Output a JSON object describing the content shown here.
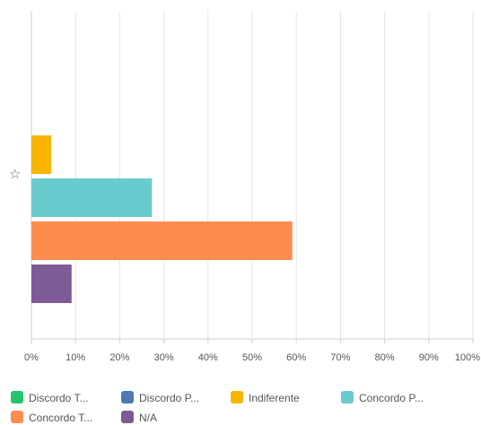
{
  "chart_data": {
    "type": "bar",
    "orientation": "horizontal",
    "categories": [
      ""
    ],
    "series": [
      {
        "name": "Discordo T...",
        "color": "#27C26C",
        "values": [
          0
        ]
      },
      {
        "name": "Discordo P...",
        "color": "#4E79B5",
        "values": [
          0
        ]
      },
      {
        "name": "Indiferente",
        "color": "#F7B500",
        "values": [
          4.5
        ]
      },
      {
        "name": "Concordo P...",
        "color": "#6ACBCF",
        "values": [
          27.3
        ]
      },
      {
        "name": "Concordo T...",
        "color": "#FF8C4F",
        "values": [
          59.1
        ]
      },
      {
        "name": "N/A",
        "color": "#7E5A96",
        "values": [
          9.1
        ]
      }
    ],
    "x_ticks": [
      "0%",
      "10%",
      "20%",
      "30%",
      "40%",
      "50%",
      "60%",
      "70%",
      "80%",
      "90%",
      "100%"
    ],
    "xlim": [
      0,
      100
    ],
    "grid": true,
    "legend_position": "bottom"
  },
  "icons": {
    "category_marker": "star-icon"
  },
  "star_glyph": "☆"
}
